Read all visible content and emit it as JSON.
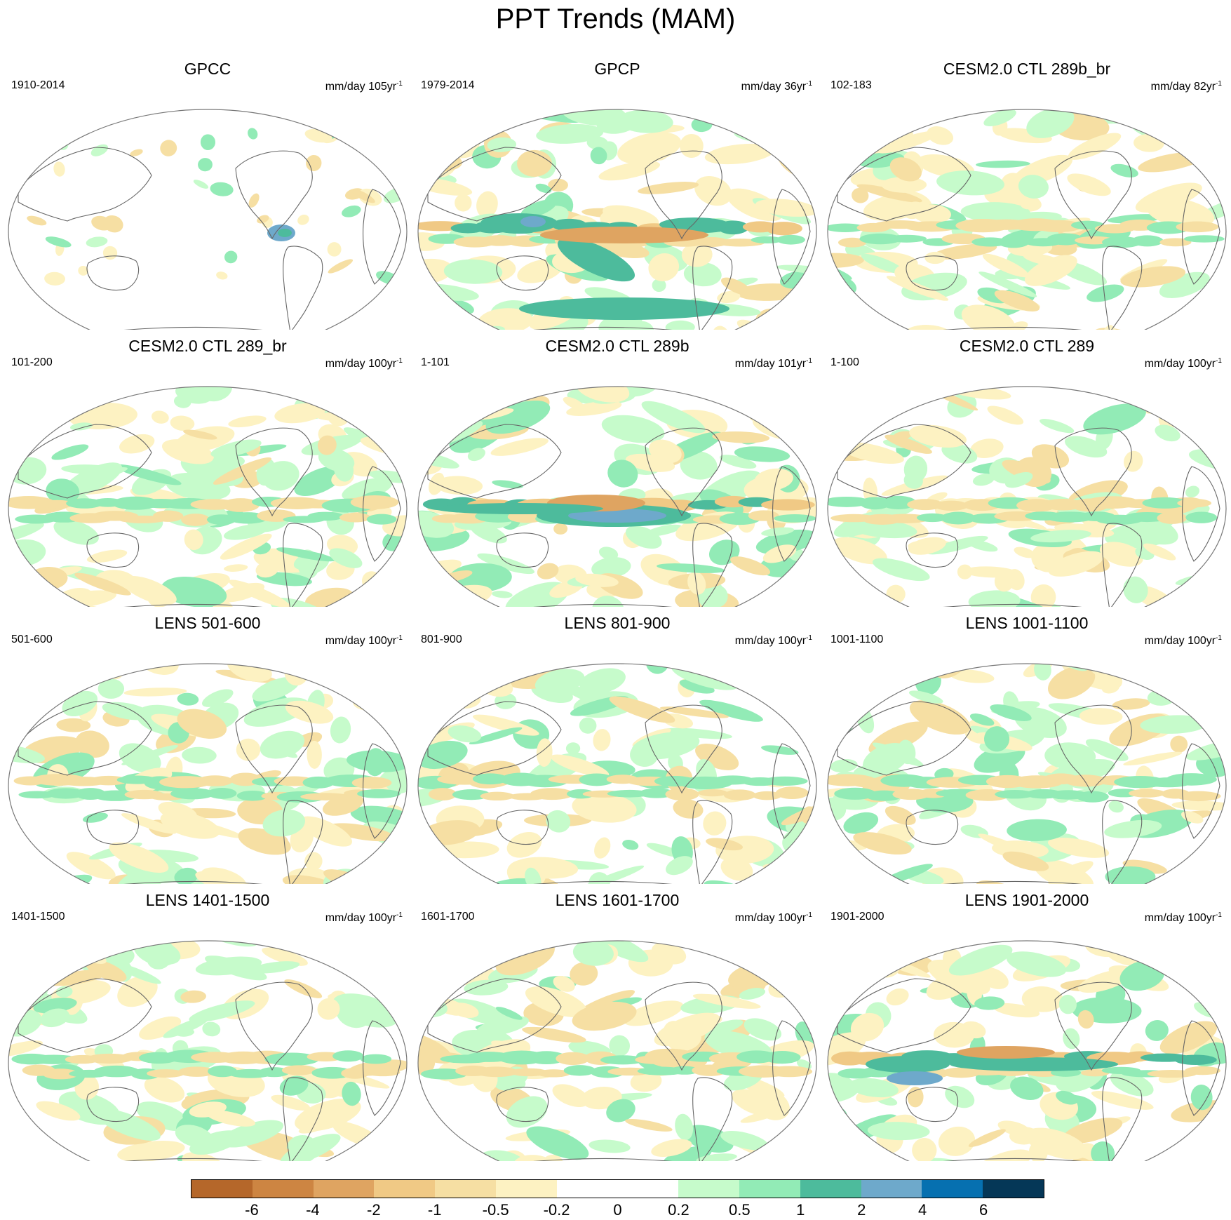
{
  "figure": {
    "title": "PPT Trends (MAM)"
  },
  "panels": [
    {
      "title": "GPCC",
      "period": "1910-2014",
      "units": "mm/day 105yr",
      "units_exp": "-1",
      "pattern": "obs-land"
    },
    {
      "title": "GPCP",
      "period": "1979-2014",
      "units": "mm/day 36yr",
      "units_exp": "-1",
      "pattern": "strong"
    },
    {
      "title": "CESM2.0 CTL 289b_br",
      "period": "102-183",
      "units": "mm/day 82yr",
      "units_exp": "-1",
      "pattern": "model"
    },
    {
      "title": "CESM2.0 CTL 289_br",
      "period": "101-200",
      "units": "mm/day 100yr",
      "units_exp": "-1",
      "pattern": "model"
    },
    {
      "title": "CESM2.0 CTL 289b",
      "period": "1-101",
      "units": "mm/day 101yr",
      "units_exp": "-1",
      "pattern": "blue-pool"
    },
    {
      "title": "CESM2.0 CTL 289",
      "period": "1-100",
      "units": "mm/day 100yr",
      "units_exp": "-1",
      "pattern": "model"
    },
    {
      "title": "LENS 501-600",
      "period": "501-600",
      "units": "mm/day 100yr",
      "units_exp": "-1",
      "pattern": "model"
    },
    {
      "title": "LENS 801-900",
      "period": "801-900",
      "units": "mm/day 100yr",
      "units_exp": "-1",
      "pattern": "model"
    },
    {
      "title": "LENS 1001-1100",
      "period": "1001-1100",
      "units": "mm/day 100yr",
      "units_exp": "-1",
      "pattern": "model"
    },
    {
      "title": "LENS 1401-1500",
      "period": "1401-1500",
      "units": "mm/day 100yr",
      "units_exp": "-1",
      "pattern": "model"
    },
    {
      "title": "LENS 1601-1700",
      "period": "1601-1700",
      "units": "mm/day 100yr",
      "units_exp": "-1",
      "pattern": "model"
    },
    {
      "title": "LENS 1901-2000",
      "period": "1901-2000",
      "units": "mm/day 100yr",
      "units_exp": "-1",
      "pattern": "wet-itcz"
    }
  ],
  "colorbar": {
    "colors": [
      "#b5672a",
      "#cd8542",
      "#dfa461",
      "#f0c985",
      "#f6dfa3",
      "#fdf2c2",
      "#ffffff",
      "#ffffff",
      "#c6fbcb",
      "#92ebb6",
      "#4dbb9c",
      "#6ea9cb",
      "#0670b0",
      "#053757"
    ],
    "labels": [
      "-6",
      "-4",
      "-2",
      "-1",
      "-0.5",
      "-0.2",
      "0",
      "0.2",
      "0.5",
      "1",
      "2",
      "4",
      "6"
    ]
  },
  "palette": {
    "outline": "#777777",
    "coast": "#666666"
  }
}
